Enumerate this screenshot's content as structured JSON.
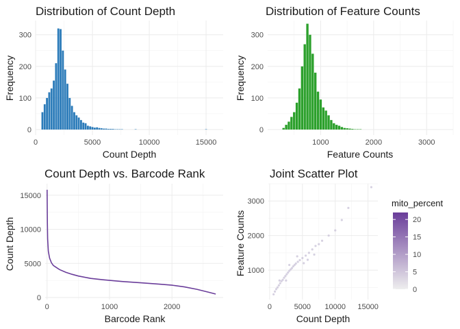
{
  "chart_data": [
    {
      "type": "bar",
      "title": "Distribution of Count Depth",
      "xlabel": "Count Depth",
      "ylabel": "Frequency",
      "xlim": [
        0,
        16500
      ],
      "ylim": [
        0,
        345
      ],
      "x_ticks": [
        0,
        5000,
        10000,
        15000
      ],
      "y_ticks": [
        0,
        100,
        200,
        300
      ],
      "bin_width": 200,
      "bin_start": 500,
      "counts": [
        55,
        80,
        100,
        118,
        130,
        155,
        210,
        320,
        318,
        250,
        190,
        145,
        100,
        75,
        55,
        45,
        38,
        30,
        22,
        20,
        12,
        10,
        8,
        6,
        7,
        5,
        4,
        3,
        3,
        2,
        2,
        2,
        1,
        1,
        1,
        1,
        0,
        0,
        0,
        0,
        0,
        1,
        0,
        0,
        0,
        0,
        0,
        0,
        0,
        0,
        0,
        0,
        0,
        0,
        0,
        0,
        0,
        0,
        0,
        0,
        0,
        0,
        0,
        0,
        0,
        0,
        0,
        0,
        0,
        0,
        0,
        0,
        1
      ],
      "color": "#2b7bb9"
    },
    {
      "type": "bar",
      "title": "Distribution of Feature Counts",
      "xlabel": "Feature Counts",
      "ylabel": "Frequency",
      "xlim": [
        0,
        3500
      ],
      "ylim": [
        0,
        345
      ],
      "x_ticks": [
        1000,
        2000,
        3000
      ],
      "y_ticks": [
        0,
        100,
        200,
        300
      ],
      "bin_width": 50,
      "bin_start": 275,
      "counts": [
        5,
        15,
        25,
        40,
        55,
        85,
        130,
        200,
        270,
        335,
        300,
        240,
        180,
        120,
        95,
        70,
        60,
        45,
        30,
        20,
        15,
        12,
        8,
        5,
        4,
        3,
        2,
        1,
        1,
        1
      ],
      "color": "#2ca02c"
    },
    {
      "type": "line",
      "title": "Count Depth vs. Barcode Rank",
      "xlabel": "Barcode Rank",
      "ylabel": "Count Depth",
      "xlim": [
        -30,
        2820
      ],
      "ylim": [
        -300,
        16700
      ],
      "x_ticks": [
        0,
        1000,
        2000
      ],
      "y_ticks": [
        0,
        5000,
        10000,
        15000
      ],
      "x": [
        1,
        5,
        10,
        20,
        40,
        70,
        100,
        150,
        200,
        300,
        400,
        500,
        700,
        900,
        1200,
        1500,
        1800,
        2000,
        2200,
        2400,
        2600,
        2700
      ],
      "y": [
        15800,
        11000,
        8600,
        6800,
        5800,
        5100,
        4700,
        4400,
        4100,
        3700,
        3400,
        3150,
        2800,
        2600,
        2350,
        2150,
        1950,
        1800,
        1550,
        1200,
        750,
        500
      ],
      "color": "#6a3d9a"
    },
    {
      "type": "scatter",
      "title": "Joint Scatter Plot",
      "xlabel": "Count Depth",
      "ylabel": "Feature Counts",
      "xlim": [
        -200,
        16500
      ],
      "ylim": [
        150,
        3500
      ],
      "x_ticks": [
        0,
        5000,
        10000,
        15000
      ],
      "y_ticks": [
        1000,
        2000,
        3000
      ],
      "points": [
        [
          600,
          300
        ],
        [
          800,
          380
        ],
        [
          1000,
          450
        ],
        [
          1200,
          500
        ],
        [
          1400,
          560
        ],
        [
          1600,
          620
        ],
        [
          1800,
          680
        ],
        [
          2000,
          720
        ],
        [
          2200,
          780
        ],
        [
          2400,
          830
        ],
        [
          2600,
          880
        ],
        [
          2800,
          930
        ],
        [
          3000,
          980
        ],
        [
          3200,
          1020
        ],
        [
          3400,
          1060
        ],
        [
          3600,
          1110
        ],
        [
          3800,
          1150
        ],
        [
          4000,
          1190
        ],
        [
          4300,
          1240
        ],
        [
          4600,
          1290
        ],
        [
          5000,
          1350
        ],
        [
          5500,
          1420
        ],
        [
          6000,
          1500
        ],
        [
          6500,
          1600
        ],
        [
          7000,
          1700
        ],
        [
          8000,
          1850
        ],
        [
          9000,
          2000
        ],
        [
          10000,
          2150
        ],
        [
          11000,
          2450
        ],
        [
          12000,
          2800
        ],
        [
          15500,
          3400
        ],
        [
          5200,
          1200
        ],
        [
          4200,
          1400
        ],
        [
          3000,
          1150
        ],
        [
          2500,
          700
        ],
        [
          1500,
          700
        ],
        [
          6800,
          1450
        ],
        [
          7500,
          1750
        ],
        [
          5800,
          1300
        ]
      ],
      "color_min": 0,
      "color_max": 22,
      "legend": {
        "title": "mito_percent",
        "ticks": [
          0,
          5,
          10,
          15,
          20
        ],
        "color_low": "#eeeeee",
        "color_high": "#6a3d9a",
        "position": "right"
      }
    }
  ]
}
